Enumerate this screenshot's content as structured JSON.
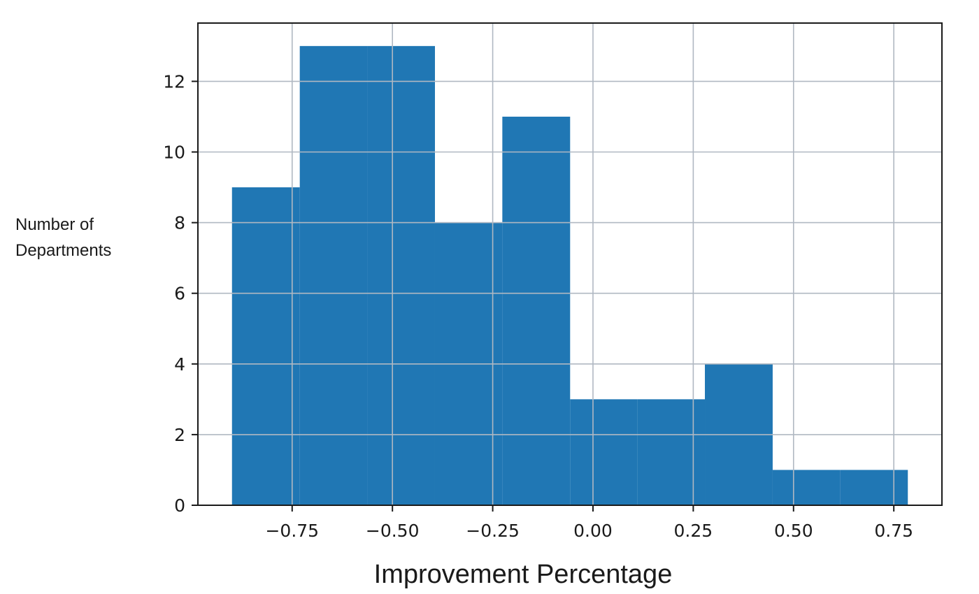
{
  "chart_data": {
    "type": "bar",
    "subtype": "histogram",
    "title": "",
    "xlabel": "Improvement Percentage",
    "ylabel_lines": [
      "Number of",
      "Departments"
    ],
    "bin_edges": [
      -0.9,
      -0.731,
      -0.563,
      -0.394,
      -0.226,
      -0.057,
      0.111,
      0.279,
      0.448,
      0.616,
      0.785
    ],
    "counts": [
      9,
      13,
      13,
      8,
      11,
      3,
      3,
      4,
      1,
      1
    ],
    "xlim": [
      -0.985,
      0.87
    ],
    "ylim": [
      0,
      13.65
    ],
    "xticks": [
      -0.75,
      -0.5,
      -0.25,
      0.0,
      0.25,
      0.5,
      0.75
    ],
    "xtick_labels": [
      "−0.75",
      "−0.50",
      "−0.25",
      "0.00",
      "0.25",
      "0.50",
      "0.75"
    ],
    "yticks": [
      0,
      2,
      4,
      6,
      8,
      10,
      12
    ],
    "ytick_labels": [
      "0",
      "2",
      "4",
      "6",
      "8",
      "10",
      "12"
    ],
    "grid": true,
    "bar_color": "#2077b4",
    "grid_color": "#b0b8c2",
    "axis_color": "#1a1a1a"
  }
}
